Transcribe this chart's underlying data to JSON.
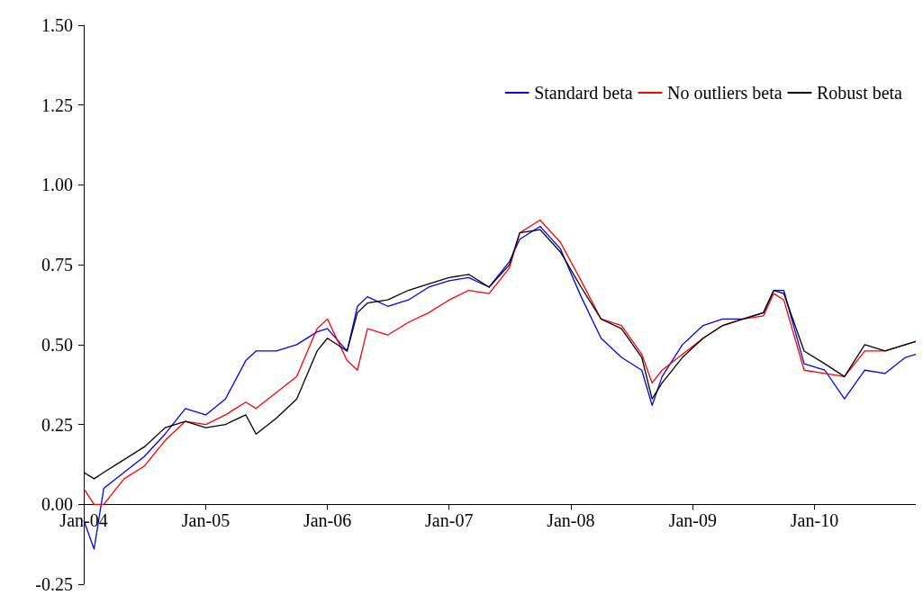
{
  "chart_data": {
    "type": "line",
    "legend": "top right",
    "marker": "none",
    "line_style": "solid",
    "x": [
      "2004-01",
      "2004-02",
      "2004-03",
      "2004-05",
      "2004-07",
      "2004-09",
      "2004-11",
      "2005-01",
      "2005-03",
      "2005-05",
      "2005-06",
      "2005-08",
      "2005-10",
      "2005-12",
      "2006-01",
      "2006-03",
      "2006-04",
      "2006-05",
      "2006-07",
      "2006-09",
      "2006-11",
      "2007-01",
      "2007-03",
      "2007-05",
      "2007-07",
      "2007-08",
      "2007-10",
      "2007-12",
      "2008-02",
      "2008-04",
      "2008-06",
      "2008-08",
      "2008-09",
      "2008-10",
      "2008-12",
      "2009-02",
      "2009-04",
      "2009-06",
      "2009-08",
      "2009-09",
      "2009-10",
      "2009-12",
      "2010-02",
      "2010-04",
      "2010-06",
      "2010-08",
      "2010-10",
      "2010-11"
    ],
    "series": [
      {
        "name": "Standard beta",
        "color": "#0000ff",
        "values": [
          -0.05,
          -0.14,
          0.05,
          0.1,
          0.15,
          0.22,
          0.3,
          0.28,
          0.33,
          0.45,
          0.48,
          0.48,
          0.5,
          0.54,
          0.55,
          0.48,
          0.62,
          0.65,
          0.62,
          0.64,
          0.68,
          0.7,
          0.71,
          0.68,
          0.76,
          0.83,
          0.87,
          0.8,
          0.65,
          0.52,
          0.46,
          0.42,
          0.31,
          0.4,
          0.5,
          0.56,
          0.58,
          0.58,
          0.6,
          0.67,
          0.67,
          0.44,
          0.42,
          0.33,
          0.42,
          0.41,
          0.46,
          0.47
        ]
      },
      {
        "name": "No outliers beta",
        "color": "#ff0000",
        "values": [
          0.05,
          0.0,
          0.0,
          0.08,
          0.12,
          0.2,
          0.26,
          0.25,
          0.28,
          0.32,
          0.3,
          0.35,
          0.4,
          0.55,
          0.58,
          0.45,
          0.42,
          0.55,
          0.53,
          0.57,
          0.6,
          0.64,
          0.67,
          0.66,
          0.74,
          0.85,
          0.89,
          0.82,
          0.7,
          0.58,
          0.56,
          0.47,
          0.38,
          0.42,
          0.47,
          0.52,
          0.56,
          0.58,
          0.59,
          0.66,
          0.64,
          0.42,
          0.41,
          0.4,
          0.48,
          0.48,
          0.5,
          0.51
        ]
      },
      {
        "name": "Robust beta",
        "color": "#000000",
        "values": [
          0.1,
          0.08,
          0.1,
          0.14,
          0.18,
          0.24,
          0.26,
          0.24,
          0.25,
          0.28,
          0.22,
          0.27,
          0.33,
          0.48,
          0.52,
          0.48,
          0.6,
          0.63,
          0.64,
          0.67,
          0.69,
          0.71,
          0.72,
          0.68,
          0.75,
          0.85,
          0.86,
          0.79,
          0.68,
          0.58,
          0.55,
          0.46,
          0.33,
          0.38,
          0.46,
          0.52,
          0.56,
          0.58,
          0.6,
          0.67,
          0.66,
          0.48,
          0.44,
          0.4,
          0.5,
          0.48,
          0.5,
          0.51
        ]
      }
    ],
    "xlim": [
      "2004-01",
      "2010-11"
    ],
    "xticks": [
      {
        "value": "2004-01",
        "label": "Jan-04"
      },
      {
        "value": "2005-01",
        "label": "Jan-05"
      },
      {
        "value": "2006-01",
        "label": "Jan-06"
      },
      {
        "value": "2007-01",
        "label": "Jan-07"
      },
      {
        "value": "2008-01",
        "label": "Jan-08"
      },
      {
        "value": "2009-01",
        "label": "Jan-09"
      },
      {
        "value": "2010-01",
        "label": "Jan-10"
      }
    ],
    "ylim": [
      -0.25,
      1.5
    ],
    "yticks": [
      {
        "value": -0.25,
        "label": "-0.25"
      },
      {
        "value": 0,
        "label": "0.00"
      },
      {
        "value": 0.25,
        "label": "0.25"
      },
      {
        "value": 0.5,
        "label": "0.50"
      },
      {
        "value": 0.75,
        "label": "0.75"
      },
      {
        "value": 1,
        "label": "1.00"
      },
      {
        "value": 1.25,
        "label": "1.25"
      },
      {
        "value": 1.5,
        "label": "1.50"
      }
    ]
  }
}
